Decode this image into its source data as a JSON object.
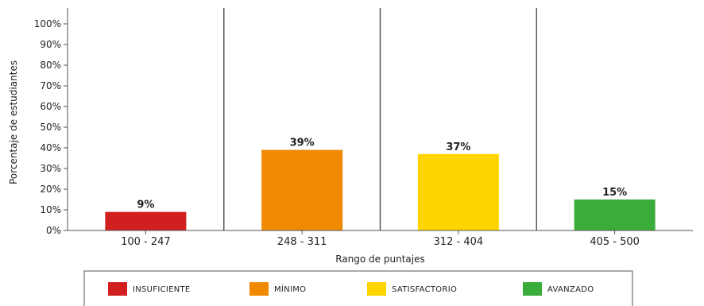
{
  "chart_data": {
    "type": "bar",
    "title": "",
    "xlabel": "Rango de puntajes",
    "ylabel": "Porcentaje de estudiantes",
    "categories": [
      "100 - 247",
      "248 - 311",
      "312 - 404",
      "405 - 500"
    ],
    "values": [
      9,
      39,
      37,
      15
    ],
    "data_labels": [
      "9%",
      "39%",
      "37%",
      "15%"
    ],
    "colors": [
      "#d11f1f",
      "#f08a00",
      "#ffd500",
      "#3aac3a"
    ],
    "ylim": [
      0,
      100
    ],
    "yticks": [
      0,
      10,
      20,
      30,
      40,
      50,
      60,
      70,
      80,
      90,
      100
    ],
    "ytick_labels": [
      "0%",
      "10%",
      "20%",
      "30%",
      "40%",
      "50%",
      "60%",
      "70%",
      "80%",
      "90%",
      "100%"
    ],
    "grid": false,
    "category_separators": true,
    "legend": {
      "position": "bottom",
      "entries": [
        "INSUFICIENTE",
        "MÍNIMO",
        "SATISFACTORIO",
        "AVANZADO"
      ]
    }
  }
}
